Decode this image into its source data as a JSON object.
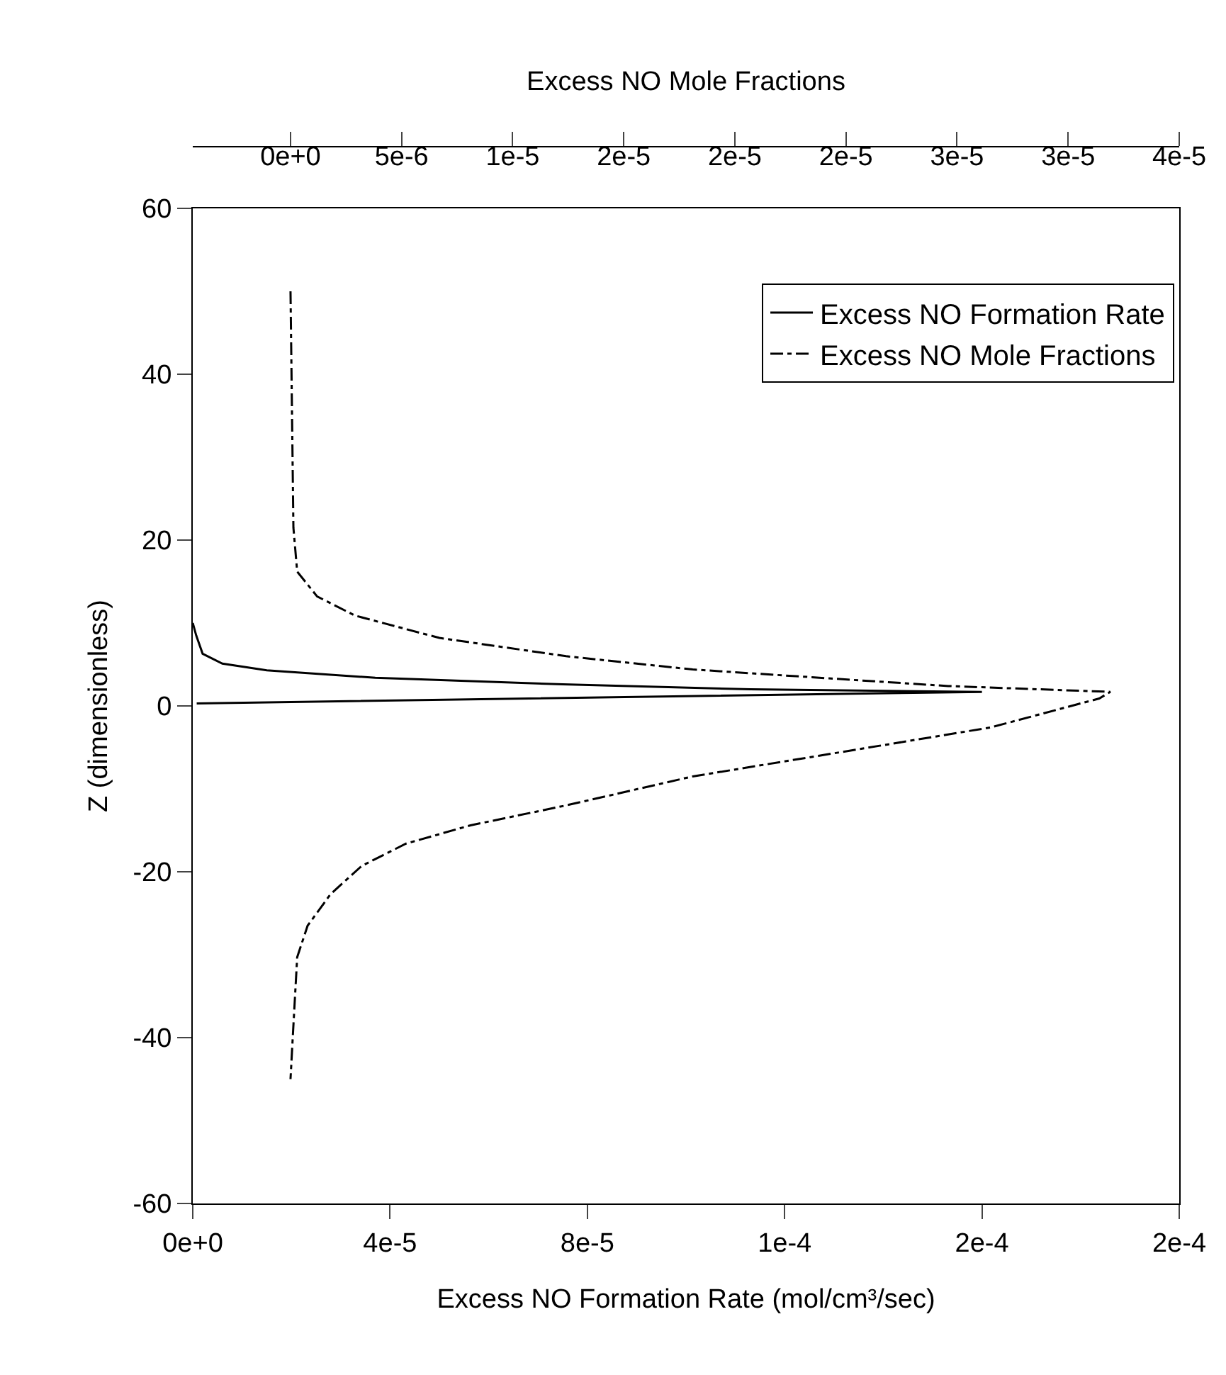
{
  "chart_data": {
    "type": "line",
    "xlabel": "Excess NO Formation Rate (mol/cm³/sec)",
    "x2label": "Excess NO Mole Fractions",
    "ylabel": "Z (dimensionless)",
    "xlim": [
      0,
      0.0002
    ],
    "xticks": [
      {
        "value": 0,
        "label": "0e+0"
      },
      {
        "value": 4e-05,
        "label": "4e-5"
      },
      {
        "value": 8e-05,
        "label": "8e-5"
      },
      {
        "value": 0.00012,
        "label": "1e-4"
      },
      {
        "value": 0.00016,
        "label": "2e-4"
      },
      {
        "value": 0.0002,
        "label": "2e-4"
      }
    ],
    "x2lim": [
      -4.4e-06,
      4e-05
    ],
    "x2ticks": [
      {
        "value": 0,
        "label": "0e+0"
      },
      {
        "value": 5e-06,
        "label": "5e-6"
      },
      {
        "value": 1e-05,
        "label": "1e-5"
      },
      {
        "value": 1.5e-05,
        "label": "2e-5"
      },
      {
        "value": 2e-05,
        "label": "2e-5"
      },
      {
        "value": 2.5e-05,
        "label": "2e-5"
      },
      {
        "value": 3e-05,
        "label": "3e-5"
      },
      {
        "value": 3.5e-05,
        "label": "3e-5"
      },
      {
        "value": 4e-05,
        "label": "4e-5"
      }
    ],
    "ylim": [
      -60,
      60
    ],
    "yticks": [
      -60,
      -40,
      -20,
      0,
      20,
      40,
      60
    ],
    "legend": "top right",
    "marker": "none",
    "series": [
      {
        "name": "Excess NO Formation Rate",
        "color": "#000000",
        "line_style": "solid",
        "x": [
          0,
          7e-07,
          2e-06,
          6e-06,
          1.5e-05,
          3.7e-05,
          7.5e-05,
          0.000113,
          0.00016,
          8e-07
        ],
        "values": [
          10,
          8.5,
          6.3,
          5.1,
          4.3,
          3.4,
          2.6,
          2.0,
          1.7,
          0.3
        ]
      },
      {
        "name": "Excess NO Mole Fractions",
        "color": "#000000",
        "line_style": "dashdot",
        "axis": "x2",
        "x": [
          0,
          1.3e-07,
          3e-07,
          1.2e-06,
          2.9e-06,
          6.7e-06,
          1.24e-05,
          1.81e-05,
          2.38e-05,
          2.96e-05,
          3.69e-05,
          3.64e-05,
          3.15e-05,
          2.38e-05,
          1.81e-05,
          1.24e-05,
          8.1e-06,
          5.2e-06,
          3.2e-06,
          1.8e-06,
          7.7e-07,
          3e-07,
          1e-07,
          0
        ],
        "values": [
          50,
          21.5,
          16.2,
          13.2,
          10.9,
          8.2,
          6.0,
          4.4,
          3.4,
          2.4,
          1.7,
          0.9,
          -2.6,
          -6.0,
          -8.5,
          -12,
          -14.4,
          -16.6,
          -19.3,
          -22.7,
          -26.5,
          -30.3,
          -40,
          -45
        ]
      }
    ]
  }
}
